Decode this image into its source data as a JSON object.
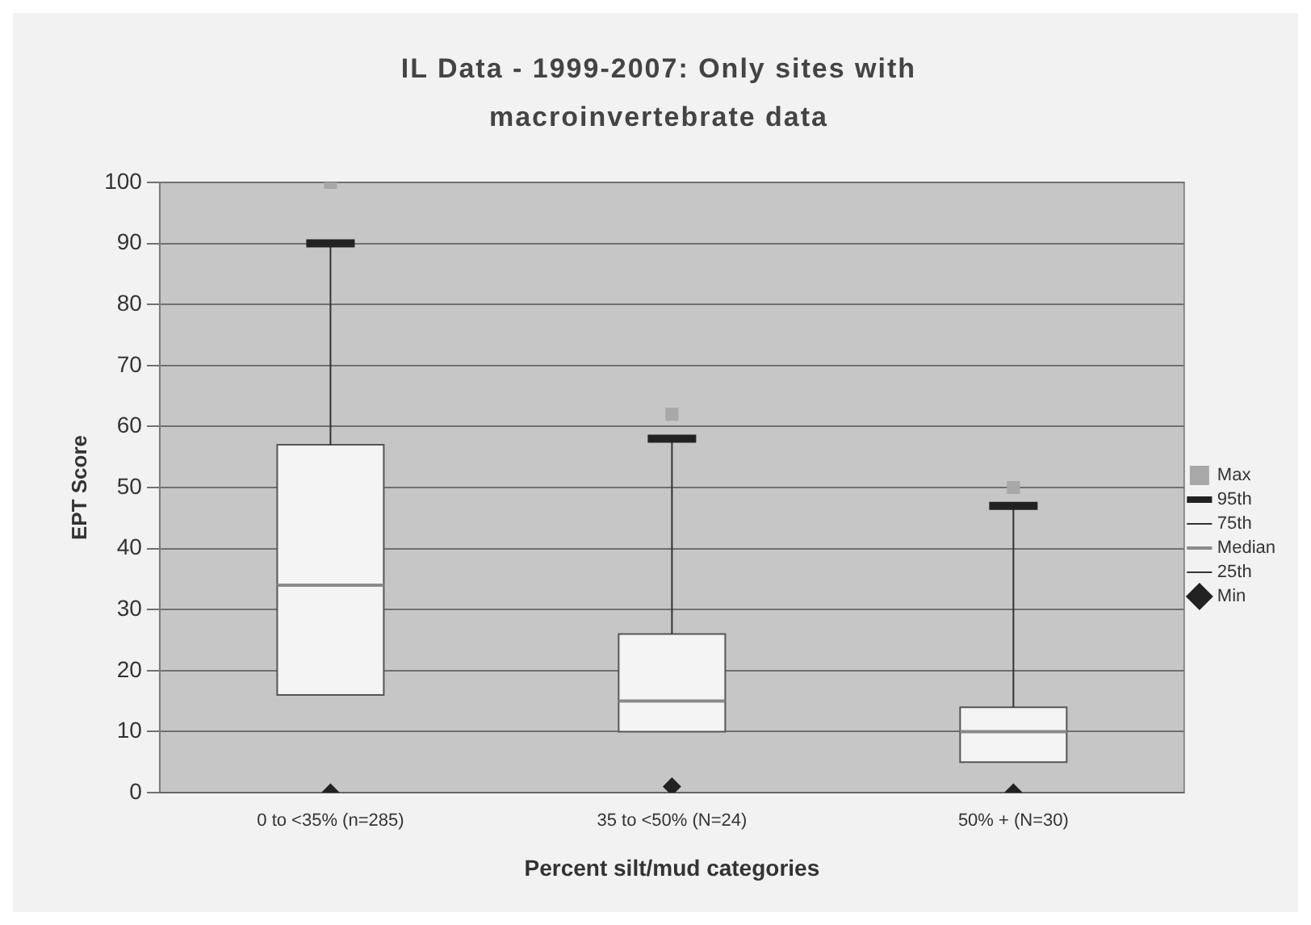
{
  "chart_data": {
    "type": "box",
    "title": "IL Data - 1999-2007:  Only sites with macroinvertebrate data",
    "xlabel": "Percent silt/mud categories",
    "ylabel": "EPT Score",
    "categories": [
      "0 to <35% (n=285)",
      "35 to <50% (N=24)",
      "50% + (N=30)"
    ],
    "boxes": [
      {
        "low": 16,
        "q1": 16,
        "median": 34,
        "q3": 57,
        "high": 90
      },
      {
        "low": 10,
        "q1": 10,
        "median": 15,
        "q3": 26,
        "high": 58
      },
      {
        "low": 5,
        "q1": 5,
        "median": 10,
        "q3": 14,
        "high": 47
      }
    ],
    "annotations": [
      "95th",
      "75th",
      "Median",
      "25th"
    ],
    "series": [
      {
        "name": "Max",
        "type": "scatter",
        "marker": "square",
        "color": "#a8a8a8",
        "values": [
          100,
          62,
          50
        ]
      },
      {
        "name": "Min",
        "type": "scatter",
        "marker": "diamond",
        "color": "#222222",
        "values": [
          0,
          1,
          0
        ]
      }
    ],
    "ylim": [
      0,
      100
    ],
    "yticks": [
      0,
      10,
      20,
      30,
      40,
      50,
      60,
      70,
      80,
      90,
      100
    ],
    "grid": "y",
    "legend": "right"
  }
}
